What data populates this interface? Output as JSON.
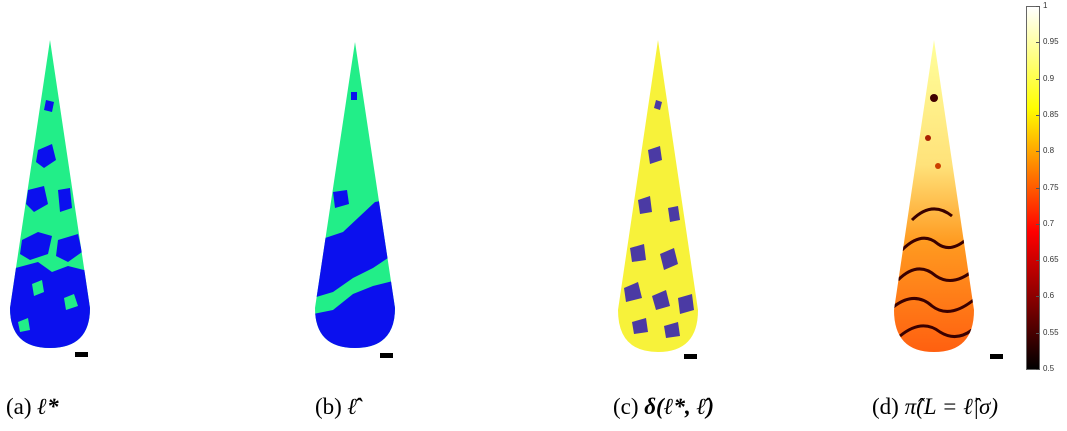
{
  "figure": {
    "panels": [
      {
        "id": "a",
        "caption_prefix": "(a)",
        "caption_math": "ℓ*"
      },
      {
        "id": "b",
        "caption_prefix": "(b)",
        "caption_math": "ℓ̂"
      },
      {
        "id": "c",
        "caption_prefix": "(c)",
        "caption_math": "δ(ℓ*, ℓ̂)"
      },
      {
        "id": "d",
        "caption_prefix": "(d)",
        "caption_math": "π̂(L = ℓ̂|σ)"
      }
    ],
    "colors": {
      "label_green": "#22ee88",
      "label_blue": "#0b10ee",
      "match_yellow": "#f7f23a",
      "mismatch_purple": "#4b3aa4"
    },
    "colorbar": {
      "ticks": [
        "1",
        "0.95",
        "0.9",
        "0.85",
        "0.8",
        "0.75",
        "0.7",
        "0.65",
        "0.6",
        "0.55",
        "0.5"
      ],
      "range": [
        0.5,
        1
      ],
      "colormap": "hot"
    }
  }
}
